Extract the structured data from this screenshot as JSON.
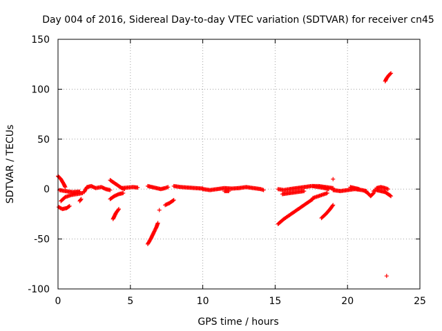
{
  "chart_data": {
    "type": "scatter",
    "title": "Day 004 of 2016, Sidereal Day-to-day VTEC variation (SDTVAR) for receiver cn45",
    "xlabel": "GPS time / hours",
    "ylabel": "SDTVAR / TECUs",
    "xlim": [
      0,
      25
    ],
    "ylim": [
      -100,
      150
    ],
    "xticks": [
      0,
      5,
      10,
      15,
      20,
      25
    ],
    "yticks": [
      -100,
      -50,
      0,
      50,
      100,
      150
    ],
    "grid": true,
    "marker": "+",
    "series_color": "#ff0000",
    "segments": [
      {
        "name": "arc-01",
        "points": [
          [
            0.0,
            13
          ],
          [
            0.2,
            10
          ],
          [
            0.4,
            5
          ],
          [
            0.5,
            2
          ]
        ]
      },
      {
        "name": "arc-02",
        "points": [
          [
            0.05,
            -18
          ],
          [
            0.3,
            -20
          ],
          [
            0.6,
            -19
          ],
          [
            0.8,
            -17
          ]
        ]
      },
      {
        "name": "arc-03",
        "points": [
          [
            0.2,
            -12
          ],
          [
            0.5,
            -8
          ],
          [
            0.9,
            -6
          ],
          [
            1.3,
            -5
          ],
          [
            1.7,
            -4
          ]
        ]
      },
      {
        "name": "arc-04",
        "points": [
          [
            0.1,
            -1
          ],
          [
            0.5,
            -2
          ],
          [
            1.0,
            -3
          ],
          [
            1.5,
            -2.5
          ]
        ]
      },
      {
        "name": "arc-05",
        "points": [
          [
            1.5,
            -12
          ],
          [
            1.6,
            -10
          ]
        ]
      },
      {
        "name": "arc-06",
        "points": [
          [
            1.8,
            -3
          ],
          [
            2.0,
            2
          ],
          [
            2.3,
            3
          ],
          [
            2.6,
            1
          ],
          [
            3.0,
            2
          ],
          [
            3.3,
            0
          ],
          [
            3.6,
            -1
          ]
        ]
      },
      {
        "name": "arc-07",
        "points": [
          [
            3.6,
            -10
          ],
          [
            3.9,
            -7
          ],
          [
            4.2,
            -5
          ],
          [
            4.5,
            -4
          ]
        ]
      },
      {
        "name": "arc-08",
        "points": [
          [
            3.6,
            9
          ],
          [
            3.8,
            7
          ],
          [
            4.0,
            5
          ],
          [
            4.2,
            3
          ],
          [
            4.4,
            1
          ],
          [
            4.6,
            0
          ]
        ]
      },
      {
        "name": "arc-09",
        "points": [
          [
            3.8,
            -30
          ],
          [
            3.9,
            -27
          ],
          [
            4.0,
            -24
          ],
          [
            4.2,
            -20
          ]
        ]
      },
      {
        "name": "arc-10",
        "points": [
          [
            4.4,
            1
          ],
          [
            4.8,
            1.5
          ],
          [
            5.2,
            2
          ],
          [
            5.5,
            1.5
          ]
        ]
      },
      {
        "name": "arc-11",
        "points": [
          [
            6.2,
            -55
          ],
          [
            6.4,
            -50
          ],
          [
            6.6,
            -44
          ],
          [
            6.8,
            -38
          ],
          [
            6.9,
            -34
          ]
        ]
      },
      {
        "name": "arc-12",
        "points": [
          [
            6.2,
            3
          ],
          [
            6.5,
            2
          ],
          [
            6.8,
            1
          ],
          [
            7.1,
            0
          ],
          [
            7.4,
            1
          ],
          [
            7.6,
            2
          ]
        ]
      },
      {
        "name": "arc-13",
        "points": [
          [
            7.0,
            -21
          ]
        ]
      },
      {
        "name": "arc-14",
        "points": [
          [
            7.4,
            -16
          ],
          [
            7.7,
            -14
          ],
          [
            8.0,
            -11
          ]
        ]
      },
      {
        "name": "arc-15",
        "points": [
          [
            8.0,
            3
          ],
          [
            8.5,
            2
          ],
          [
            9.0,
            1.5
          ],
          [
            9.5,
            1
          ],
          [
            10.0,
            0.5
          ]
        ]
      },
      {
        "name": "arc-16",
        "points": [
          [
            10.0,
            0
          ],
          [
            10.5,
            -1
          ],
          [
            11.0,
            0
          ],
          [
            11.5,
            1
          ],
          [
            12.0,
            0.5
          ],
          [
            12.5,
            1
          ]
        ]
      },
      {
        "name": "arc-17",
        "points": [
          [
            11.5,
            -2
          ],
          [
            11.8,
            -2
          ]
        ]
      },
      {
        "name": "arc-18",
        "points": [
          [
            12.5,
            1
          ],
          [
            13.0,
            2
          ],
          [
            13.5,
            1
          ],
          [
            14.0,
            0
          ],
          [
            14.2,
            -1
          ]
        ]
      },
      {
        "name": "arc-19",
        "points": [
          [
            15.2,
            -35
          ],
          [
            15.6,
            -30
          ],
          [
            16.0,
            -26
          ],
          [
            16.5,
            -21
          ],
          [
            17.0,
            -16
          ],
          [
            17.4,
            -12
          ],
          [
            17.6,
            -10
          ]
        ]
      },
      {
        "name": "arc-20",
        "points": [
          [
            15.2,
            0
          ],
          [
            15.6,
            -1
          ],
          [
            16.0,
            0
          ],
          [
            16.5,
            1
          ],
          [
            17.0,
            2
          ],
          [
            17.5,
            3
          ],
          [
            18.0,
            3
          ],
          [
            18.5,
            2
          ],
          [
            19.0,
            1
          ]
        ]
      },
      {
        "name": "arc-21",
        "points": [
          [
            15.5,
            -5
          ],
          [
            16.0,
            -4
          ],
          [
            16.5,
            -3
          ],
          [
            17.0,
            -2
          ]
        ]
      },
      {
        "name": "arc-22",
        "points": [
          [
            17.6,
            3
          ],
          [
            18.0,
            2
          ],
          [
            18.4,
            1
          ],
          [
            18.7,
            0
          ]
        ]
      },
      {
        "name": "arc-23",
        "points": [
          [
            17.6,
            -9
          ],
          [
            18.2,
            -6
          ],
          [
            18.6,
            -4
          ]
        ]
      },
      {
        "name": "arc-24",
        "points": [
          [
            18.2,
            -29
          ],
          [
            18.5,
            -25
          ],
          [
            18.8,
            -20
          ],
          [
            19.0,
            -16
          ]
        ]
      },
      {
        "name": "arc-25",
        "points": [
          [
            19.0,
            10
          ]
        ]
      },
      {
        "name": "arc-26",
        "points": [
          [
            19.0,
            -1
          ],
          [
            19.5,
            -2
          ],
          [
            20.0,
            -1
          ],
          [
            20.5,
            0
          ],
          [
            21.0,
            -1
          ],
          [
            21.3,
            -2
          ]
        ]
      },
      {
        "name": "arc-27",
        "points": [
          [
            20.2,
            2
          ],
          [
            20.5,
            1
          ],
          [
            20.8,
            0
          ]
        ]
      },
      {
        "name": "arc-28",
        "points": [
          [
            21.2,
            -2
          ],
          [
            21.4,
            -4
          ],
          [
            21.6,
            -7
          ],
          [
            21.8,
            -4
          ]
        ]
      },
      {
        "name": "arc-29",
        "points": [
          [
            21.8,
            -2
          ],
          [
            22.0,
            -1
          ],
          [
            22.3,
            -2
          ],
          [
            22.6,
            -3
          ]
        ]
      },
      {
        "name": "arc-30",
        "points": [
          [
            22.0,
            1
          ],
          [
            22.3,
            2
          ],
          [
            22.6,
            1
          ],
          [
            22.8,
            0
          ]
        ]
      },
      {
        "name": "arc-31",
        "points": [
          [
            22.6,
            -3
          ],
          [
            22.8,
            -5
          ],
          [
            23.0,
            -7
          ]
        ]
      },
      {
        "name": "arc-32",
        "points": [
          [
            22.6,
            108
          ],
          [
            22.7,
            111
          ],
          [
            22.85,
            114
          ],
          [
            23.0,
            116
          ]
        ]
      },
      {
        "name": "arc-33",
        "points": [
          [
            22.7,
            -87
          ]
        ]
      }
    ]
  }
}
